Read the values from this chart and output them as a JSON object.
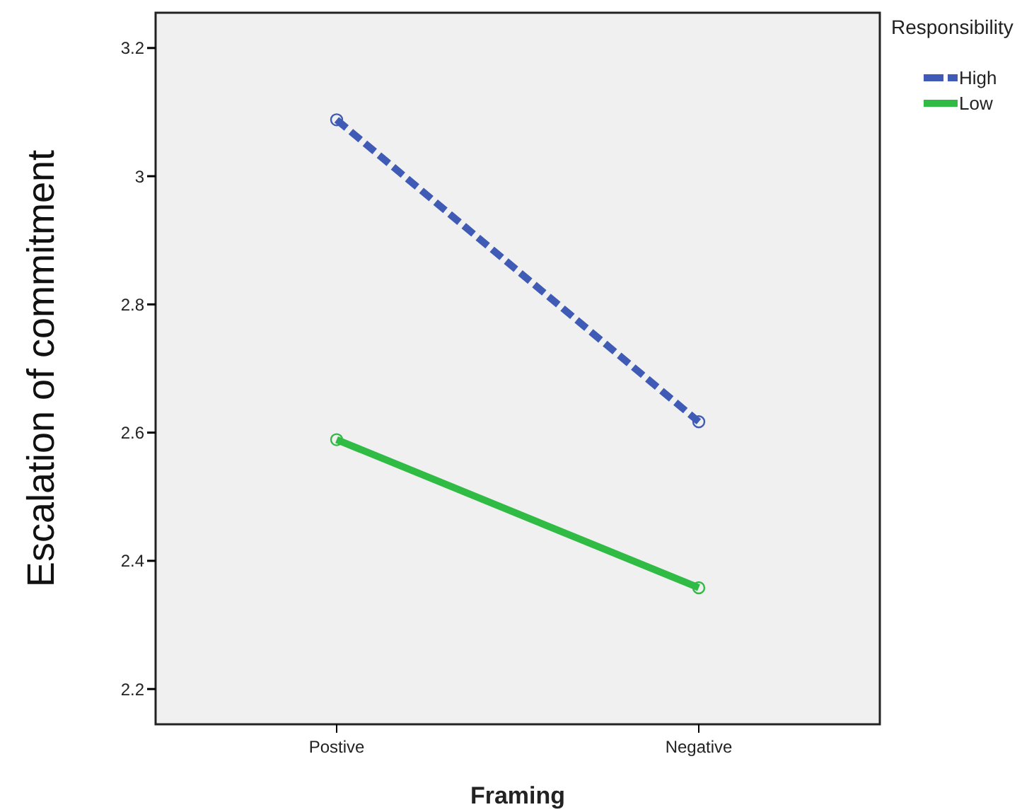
{
  "chart_data": {
    "type": "line",
    "xlabel": "Framing",
    "ylabel": "Escalation of commitment",
    "legend_title": "Responsibility",
    "categories": [
      "Postive",
      "Negative"
    ],
    "series": [
      {
        "name": "High",
        "color": "#3f5bb5",
        "values": [
          3.088,
          2.617
        ],
        "line_style": "dashed"
      },
      {
        "name": "Low",
        "color": "#2fbb44",
        "values": [
          2.589,
          2.358
        ],
        "line_style": "solid"
      }
    ],
    "ylim": [
      2.145,
      3.255
    ],
    "yticks": [
      2.2,
      2.4,
      2.6,
      2.8,
      3,
      3.2
    ],
    "marker": "circle",
    "legend": "top right",
    "grid": false
  }
}
